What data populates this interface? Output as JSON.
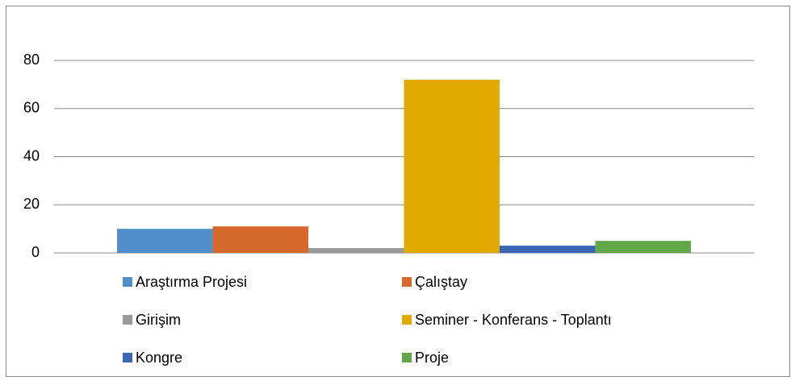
{
  "chart_data": {
    "type": "bar",
    "categories": [
      null
    ],
    "series": [
      {
        "name": "Araştırma Projesi",
        "color": "#4f8ec9",
        "values": [
          10
        ]
      },
      {
        "name": "Çalıştay",
        "color": "#d4692b",
        "values": [
          11
        ]
      },
      {
        "name": "Girişim",
        "color": "#999999",
        "values": [
          2
        ]
      },
      {
        "name": "Seminer - Konferans - Toplantı",
        "color": "#e2aa00",
        "values": [
          72
        ]
      },
      {
        "name": "Kongre",
        "color": "#3a66b5",
        "values": [
          3
        ]
      },
      {
        "name": "Proje",
        "color": "#62a64a",
        "values": [
          5
        ]
      }
    ],
    "ylim": [
      0,
      80
    ],
    "yticks": [
      0,
      20,
      40,
      60,
      80
    ],
    "grid": true,
    "legend": "bottom"
  }
}
